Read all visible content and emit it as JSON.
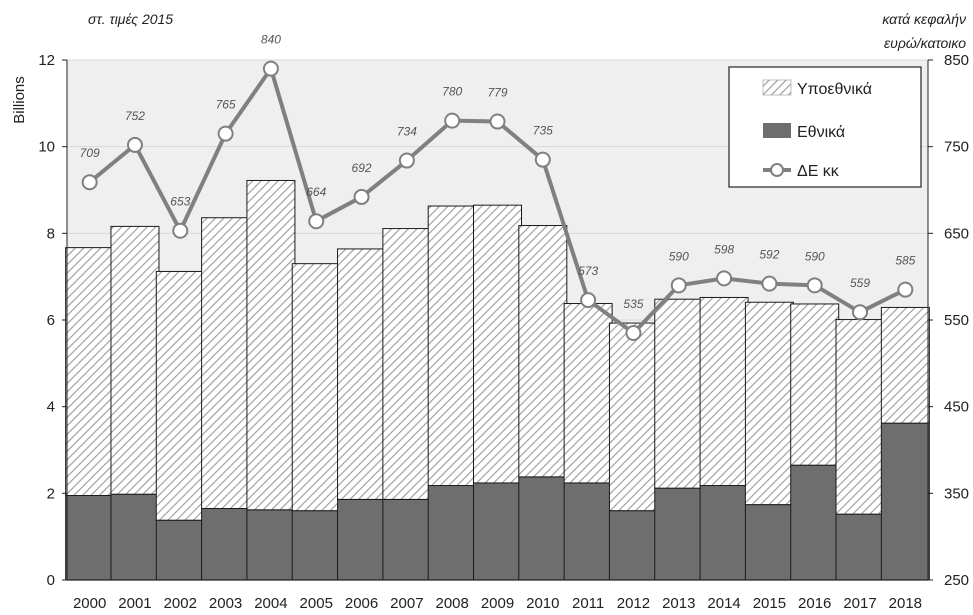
{
  "chart_data": {
    "type": "bar",
    "stacked": true,
    "secondary_line": true,
    "units_note_left": "στ. τιμές 2015",
    "units_note_right_line1": "κατά κεφαλήν",
    "units_note_right_line2": "ευρώ/κατοικο",
    "ylabel": "Billions",
    "ylim": [
      0,
      12
    ],
    "y_ticks": [
      "0",
      "2",
      "4",
      "6",
      "8",
      "10",
      "12"
    ],
    "y2lim": [
      250,
      850
    ],
    "y2_ticks": [
      "250",
      "350",
      "450",
      "550",
      "650",
      "750",
      "850"
    ],
    "categories": [
      "2000",
      "2001",
      "2002",
      "2003",
      "2004",
      "2005",
      "2006",
      "2007",
      "2008",
      "2009",
      "2010",
      "2011",
      "2012",
      "2013",
      "2014",
      "2015",
      "2016",
      "2017",
      "2018"
    ],
    "series": [
      {
        "name": "Εθνικά",
        "axis": "left",
        "color": "#6e6e6e",
        "values": [
          1.95,
          1.98,
          1.38,
          1.65,
          1.62,
          1.6,
          1.86,
          1.86,
          2.18,
          2.24,
          2.38,
          2.24,
          1.6,
          2.12,
          2.18,
          1.74,
          2.65,
          1.52,
          3.62
        ]
      },
      {
        "name": "Υποεθνικά",
        "axis": "left",
        "pattern": "hatched",
        "values": [
          5.72,
          6.18,
          5.74,
          6.71,
          7.6,
          5.7,
          5.78,
          6.25,
          6.45,
          6.41,
          5.8,
          4.14,
          4.33,
          4.36,
          4.34,
          4.67,
          3.72,
          4.49,
          2.67
        ]
      },
      {
        "name": "ΔΕ κκ",
        "type": "line",
        "axis": "right",
        "color": "#808080",
        "values": [
          709,
          752,
          653,
          765,
          840,
          664,
          692,
          734,
          780,
          779,
          735,
          573,
          535,
          590,
          598,
          592,
          590,
          559,
          585
        ],
        "labels": [
          "709",
          "752",
          "653",
          "765",
          "840",
          "664",
          "692",
          "734",
          "780",
          "779",
          "735",
          "573",
          "535",
          "590",
          "598",
          "592",
          "590",
          "559",
          "585"
        ]
      }
    ],
    "legend_position": "top-right",
    "grid": true
  }
}
